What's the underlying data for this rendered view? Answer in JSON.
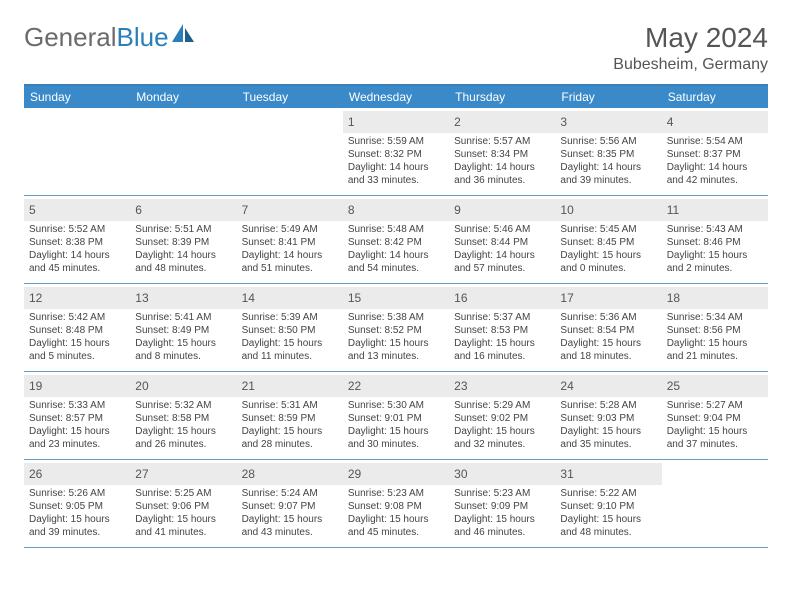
{
  "brand": {
    "part1": "General",
    "part2": "Blue"
  },
  "title": {
    "month": "May 2024",
    "location": "Bubesheim, Germany"
  },
  "colors": {
    "header_bar": "#3a89c9",
    "header_border": "#3a7fb8",
    "row_border": "#6a9bc4",
    "daynum_bg": "#ebebeb",
    "text": "#444444",
    "logo_gray": "#6b6b6b",
    "logo_blue": "#2a7fb8"
  },
  "weekdays": [
    "Sunday",
    "Monday",
    "Tuesday",
    "Wednesday",
    "Thursday",
    "Friday",
    "Saturday"
  ],
  "weeks": [
    [
      {
        "empty": true
      },
      {
        "empty": true
      },
      {
        "empty": true
      },
      {
        "day": "1",
        "sunrise": "5:59 AM",
        "sunset": "8:32 PM",
        "daylight": "14 hours and 33 minutes."
      },
      {
        "day": "2",
        "sunrise": "5:57 AM",
        "sunset": "8:34 PM",
        "daylight": "14 hours and 36 minutes."
      },
      {
        "day": "3",
        "sunrise": "5:56 AM",
        "sunset": "8:35 PM",
        "daylight": "14 hours and 39 minutes."
      },
      {
        "day": "4",
        "sunrise": "5:54 AM",
        "sunset": "8:37 PM",
        "daylight": "14 hours and 42 minutes."
      }
    ],
    [
      {
        "day": "5",
        "sunrise": "5:52 AM",
        "sunset": "8:38 PM",
        "daylight": "14 hours and 45 minutes."
      },
      {
        "day": "6",
        "sunrise": "5:51 AM",
        "sunset": "8:39 PM",
        "daylight": "14 hours and 48 minutes."
      },
      {
        "day": "7",
        "sunrise": "5:49 AM",
        "sunset": "8:41 PM",
        "daylight": "14 hours and 51 minutes."
      },
      {
        "day": "8",
        "sunrise": "5:48 AM",
        "sunset": "8:42 PM",
        "daylight": "14 hours and 54 minutes."
      },
      {
        "day": "9",
        "sunrise": "5:46 AM",
        "sunset": "8:44 PM",
        "daylight": "14 hours and 57 minutes."
      },
      {
        "day": "10",
        "sunrise": "5:45 AM",
        "sunset": "8:45 PM",
        "daylight": "15 hours and 0 minutes."
      },
      {
        "day": "11",
        "sunrise": "5:43 AM",
        "sunset": "8:46 PM",
        "daylight": "15 hours and 2 minutes."
      }
    ],
    [
      {
        "day": "12",
        "sunrise": "5:42 AM",
        "sunset": "8:48 PM",
        "daylight": "15 hours and 5 minutes."
      },
      {
        "day": "13",
        "sunrise": "5:41 AM",
        "sunset": "8:49 PM",
        "daylight": "15 hours and 8 minutes."
      },
      {
        "day": "14",
        "sunrise": "5:39 AM",
        "sunset": "8:50 PM",
        "daylight": "15 hours and 11 minutes."
      },
      {
        "day": "15",
        "sunrise": "5:38 AM",
        "sunset": "8:52 PM",
        "daylight": "15 hours and 13 minutes."
      },
      {
        "day": "16",
        "sunrise": "5:37 AM",
        "sunset": "8:53 PM",
        "daylight": "15 hours and 16 minutes."
      },
      {
        "day": "17",
        "sunrise": "5:36 AM",
        "sunset": "8:54 PM",
        "daylight": "15 hours and 18 minutes."
      },
      {
        "day": "18",
        "sunrise": "5:34 AM",
        "sunset": "8:56 PM",
        "daylight": "15 hours and 21 minutes."
      }
    ],
    [
      {
        "day": "19",
        "sunrise": "5:33 AM",
        "sunset": "8:57 PM",
        "daylight": "15 hours and 23 minutes."
      },
      {
        "day": "20",
        "sunrise": "5:32 AM",
        "sunset": "8:58 PM",
        "daylight": "15 hours and 26 minutes."
      },
      {
        "day": "21",
        "sunrise": "5:31 AM",
        "sunset": "8:59 PM",
        "daylight": "15 hours and 28 minutes."
      },
      {
        "day": "22",
        "sunrise": "5:30 AM",
        "sunset": "9:01 PM",
        "daylight": "15 hours and 30 minutes."
      },
      {
        "day": "23",
        "sunrise": "5:29 AM",
        "sunset": "9:02 PM",
        "daylight": "15 hours and 32 minutes."
      },
      {
        "day": "24",
        "sunrise": "5:28 AM",
        "sunset": "9:03 PM",
        "daylight": "15 hours and 35 minutes."
      },
      {
        "day": "25",
        "sunrise": "5:27 AM",
        "sunset": "9:04 PM",
        "daylight": "15 hours and 37 minutes."
      }
    ],
    [
      {
        "day": "26",
        "sunrise": "5:26 AM",
        "sunset": "9:05 PM",
        "daylight": "15 hours and 39 minutes."
      },
      {
        "day": "27",
        "sunrise": "5:25 AM",
        "sunset": "9:06 PM",
        "daylight": "15 hours and 41 minutes."
      },
      {
        "day": "28",
        "sunrise": "5:24 AM",
        "sunset": "9:07 PM",
        "daylight": "15 hours and 43 minutes."
      },
      {
        "day": "29",
        "sunrise": "5:23 AM",
        "sunset": "9:08 PM",
        "daylight": "15 hours and 45 minutes."
      },
      {
        "day": "30",
        "sunrise": "5:23 AM",
        "sunset": "9:09 PM",
        "daylight": "15 hours and 46 minutes."
      },
      {
        "day": "31",
        "sunrise": "5:22 AM",
        "sunset": "9:10 PM",
        "daylight": "15 hours and 48 minutes."
      },
      {
        "empty": true
      }
    ]
  ],
  "labels": {
    "sunrise": "Sunrise:",
    "sunset": "Sunset:",
    "daylight": "Daylight:"
  }
}
